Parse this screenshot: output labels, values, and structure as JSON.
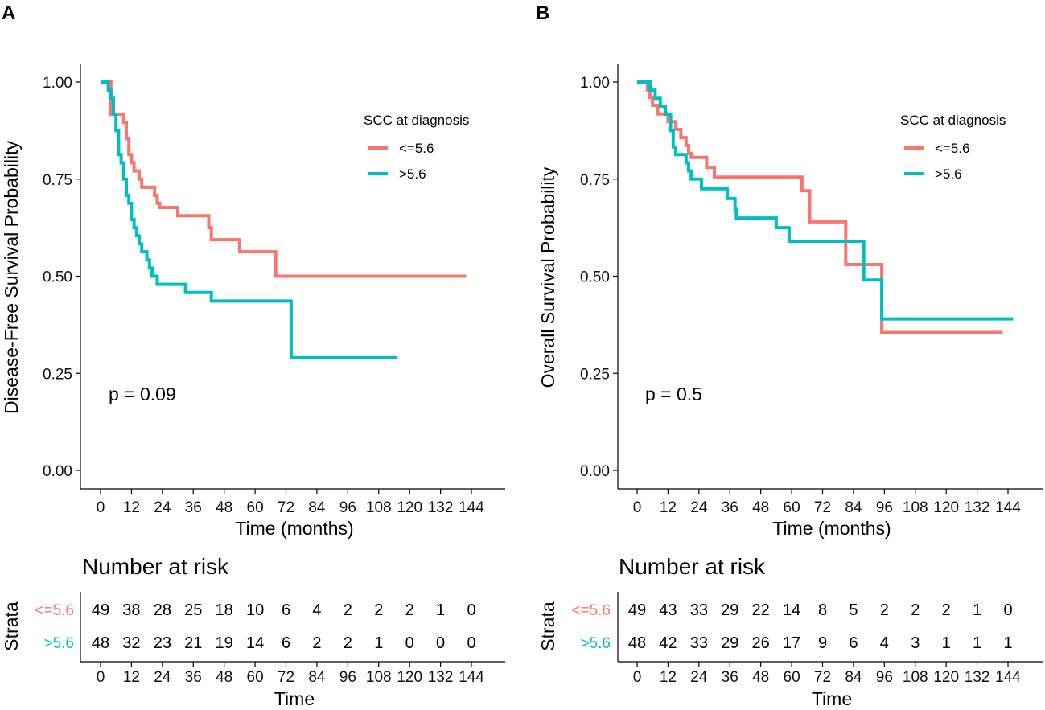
{
  "colors": {
    "low": "#F8766D",
    "high": "#00BFC4",
    "axis": "#000000"
  },
  "chart_data": [
    {
      "type": "line",
      "panel": "A",
      "xlabel": "Time (months)",
      "ylabel": "Disease-Free Survival Probability",
      "xticks": [
        0,
        12,
        24,
        36,
        48,
        60,
        72,
        84,
        96,
        108,
        120,
        132,
        144
      ],
      "yticks": [
        "0.00",
        "0.25",
        "0.50",
        "0.75",
        "1.00"
      ],
      "xlim": [
        0,
        144
      ],
      "ylim": [
        0,
        1
      ],
      "legend_title": "SCC at diagnosis",
      "p_value": "p = 0.09",
      "series": [
        {
          "name": "<=5.6",
          "color": "#F8766D",
          "steps": [
            [
              0,
              1.0
            ],
            [
              4,
              0.917
            ],
            [
              9,
              0.896
            ],
            [
              10,
              0.854
            ],
            [
              11,
              0.813
            ],
            [
              12,
              0.792
            ],
            [
              13,
              0.771
            ],
            [
              15,
              0.75
            ],
            [
              16,
              0.729
            ],
            [
              21,
              0.708
            ],
            [
              22,
              0.688
            ],
            [
              23,
              0.677
            ],
            [
              30,
              0.656
            ],
            [
              42,
              0.625
            ],
            [
              43,
              0.594
            ],
            [
              54,
              0.563
            ],
            [
              68,
              0.5
            ],
            [
              142,
              0.5
            ]
          ]
        },
        {
          "name": ">5.6",
          "color": "#00BFC4",
          "steps": [
            [
              0,
              1.0
            ],
            [
              3,
              0.979
            ],
            [
              4,
              0.958
            ],
            [
              5,
              0.917
            ],
            [
              6,
              0.875
            ],
            [
              7,
              0.813
            ],
            [
              8,
              0.792
            ],
            [
              9,
              0.75
            ],
            [
              10,
              0.708
            ],
            [
              11,
              0.688
            ],
            [
              12,
              0.646
            ],
            [
              13,
              0.625
            ],
            [
              14,
              0.604
            ],
            [
              15,
              0.583
            ],
            [
              16,
              0.563
            ],
            [
              18,
              0.542
            ],
            [
              19,
              0.521
            ],
            [
              20,
              0.5
            ],
            [
              22,
              0.479
            ],
            [
              33,
              0.458
            ],
            [
              43,
              0.436
            ],
            [
              74,
              0.29
            ],
            [
              115,
              0.29
            ]
          ]
        }
      ]
    },
    {
      "type": "line",
      "panel": "B",
      "xlabel": "Time (months)",
      "ylabel": "Overall Survival Probability",
      "xticks": [
        0,
        12,
        24,
        36,
        48,
        60,
        72,
        84,
        96,
        108,
        120,
        132,
        144
      ],
      "yticks": [
        "0.00",
        "0.25",
        "0.50",
        "0.75",
        "1.00"
      ],
      "xlim": [
        0,
        144
      ],
      "ylim": [
        0,
        1
      ],
      "legend_title": "SCC at diagnosis",
      "p_value": "p = 0.5",
      "series": [
        {
          "name": "<=5.6",
          "color": "#F8766D",
          "steps": [
            [
              0,
              1.0
            ],
            [
              4,
              0.98
            ],
            [
              5,
              0.96
            ],
            [
              6,
              0.94
            ],
            [
              8,
              0.918
            ],
            [
              12,
              0.898
            ],
            [
              15,
              0.878
            ],
            [
              17,
              0.857
            ],
            [
              19,
              0.837
            ],
            [
              20,
              0.816
            ],
            [
              21,
              0.806
            ],
            [
              27,
              0.78
            ],
            [
              30,
              0.755
            ],
            [
              64,
              0.72
            ],
            [
              67,
              0.64
            ],
            [
              81,
              0.53
            ],
            [
              95,
              0.355
            ],
            [
              142,
              0.355
            ]
          ]
        },
        {
          "name": ">5.6",
          "color": "#00BFC4",
          "steps": [
            [
              0,
              1.0
            ],
            [
              5,
              0.979
            ],
            [
              7,
              0.958
            ],
            [
              9,
              0.938
            ],
            [
              11,
              0.917
            ],
            [
              13,
              0.875
            ],
            [
              14,
              0.833
            ],
            [
              15,
              0.813
            ],
            [
              19,
              0.792
            ],
            [
              20,
              0.771
            ],
            [
              21,
              0.75
            ],
            [
              25,
              0.725
            ],
            [
              35,
              0.7
            ],
            [
              38,
              0.672
            ],
            [
              38.5,
              0.65
            ],
            [
              54,
              0.625
            ],
            [
              59,
              0.59
            ],
            [
              88,
              0.49
            ],
            [
              95,
              0.39
            ],
            [
              146,
              0.39
            ]
          ]
        }
      ]
    }
  ],
  "risk_tables": [
    {
      "title": "Number at risk",
      "ylabel": "Strata",
      "xlabel": "Time",
      "xticks": [
        0,
        12,
        24,
        36,
        48,
        60,
        72,
        84,
        96,
        108,
        120,
        132,
        144
      ],
      "rows": [
        {
          "label": "<=5.6",
          "color": "#F8766D",
          "values": [
            49,
            38,
            28,
            25,
            18,
            10,
            6,
            4,
            2,
            2,
            2,
            1,
            0
          ]
        },
        {
          "label": ">5.6",
          "color": "#00BFC4",
          "values": [
            48,
            32,
            23,
            21,
            19,
            14,
            6,
            2,
            2,
            1,
            0,
            0,
            0
          ]
        }
      ]
    },
    {
      "title": "Number at risk",
      "ylabel": "Strata",
      "xlabel": "Time",
      "xticks": [
        0,
        12,
        24,
        36,
        48,
        60,
        72,
        84,
        96,
        108,
        120,
        132,
        144
      ],
      "rows": [
        {
          "label": "<=5.6",
          "color": "#F8766D",
          "values": [
            49,
            43,
            33,
            29,
            22,
            14,
            8,
            5,
            2,
            2,
            2,
            1,
            0
          ]
        },
        {
          "label": ">5.6",
          "color": "#00BFC4",
          "values": [
            48,
            42,
            33,
            29,
            26,
            17,
            9,
            6,
            4,
            3,
            1,
            1,
            1
          ]
        }
      ]
    }
  ]
}
